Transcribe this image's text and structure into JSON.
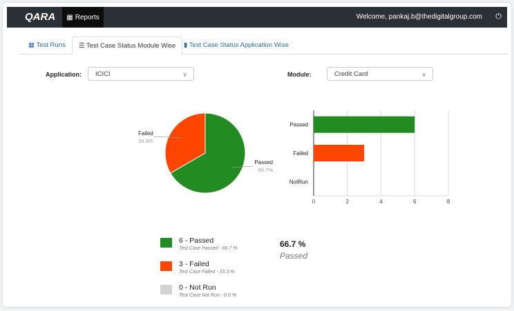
{
  "nav": {
    "logo": "QARA",
    "reports": "Reports",
    "welcome": "Welcome, pankaj.b@thedigitalgroup.com"
  },
  "tabs": [
    {
      "label": "Test Runs"
    },
    {
      "label": "Test Case Status Module Wise"
    },
    {
      "label": "Test Case Status Application Wise"
    }
  ],
  "filters": {
    "application_label": "Application:",
    "application_value": "ICICI",
    "module_label": "Module:",
    "module_value": "Credit Card"
  },
  "colors": {
    "passed": "#228b22",
    "failed": "#ff4500",
    "notrun": "#d3d3d3"
  },
  "chart_data": [
    {
      "type": "pie",
      "slices": [
        {
          "label": "Passed",
          "value": 6,
          "pct": "66.7%"
        },
        {
          "label": "Failed",
          "value": 3,
          "pct": "33.3%"
        }
      ]
    },
    {
      "type": "bar",
      "orientation": "horizontal",
      "categories": [
        "Passed",
        "Failed",
        "NotRun"
      ],
      "values": [
        6,
        3,
        0
      ],
      "xlim": [
        0,
        8
      ],
      "xticks": [
        "0",
        "2",
        "4",
        "6",
        "8"
      ],
      "grid": true
    }
  ],
  "legend": [
    {
      "title": "6 - Passed",
      "sub": "Test Case Passed - 66.7 %"
    },
    {
      "title": "3 - Failed",
      "sub": "Test Case Failed - 33.3 %"
    },
    {
      "title": "0 - Not Run",
      "sub": "Test Case Not Run - 0.0 %"
    }
  ],
  "summary": {
    "pct": "66.7 %",
    "label": "Passed"
  }
}
